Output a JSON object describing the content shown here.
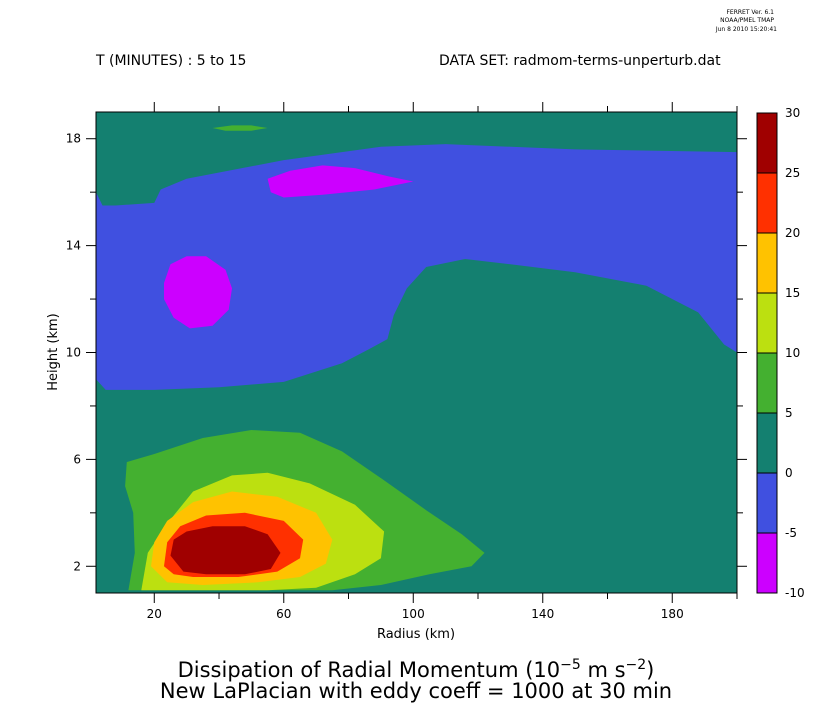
{
  "ferret": {
    "line1": "FERRET Ver. 6.1",
    "line2": "NOAA/PMEL TMAP",
    "line3": "Jun  8 2010 15:20:41"
  },
  "header": {
    "time_range": "T (MINUTES) : 5 to 15",
    "dataset": "DATA SET: radmom-terms-unperturb.dat"
  },
  "title": {
    "line1_prefix": "Dissipation of Radial Momentum (10",
    "line1_exp1": "−5",
    "line1_mid": " m s",
    "line1_exp2": "−2",
    "line1_suffix": ")",
    "line2": "New LaPlacian with eddy coeff = 1000 at 30 min"
  },
  "chart_data": {
    "type": "heatmap",
    "subtype": "filled-contour",
    "xlabel": "Radius (km)",
    "ylabel": "Height (km)",
    "xlim": [
      2,
      200
    ],
    "ylim": [
      1,
      19
    ],
    "x_ticks": [
      20,
      40,
      60,
      80,
      100,
      120,
      140,
      160,
      180,
      200
    ],
    "x_tick_labels": [
      "20",
      "60",
      "100",
      "140",
      "180"
    ],
    "x_labeled_ticks": [
      20,
      60,
      100,
      140,
      180
    ],
    "y_ticks": [
      2,
      4,
      6,
      8,
      10,
      12,
      14,
      16,
      18
    ],
    "y_tick_labels": [
      "2",
      "6",
      "10",
      "14",
      "18"
    ],
    "y_labeled_ticks": [
      2,
      6,
      10,
      14,
      18
    ],
    "colorbar": {
      "levels": [
        -10,
        -5,
        0,
        5,
        10,
        15,
        20,
        25,
        30
      ],
      "level_labels": [
        "-10",
        "-5",
        "0",
        "5",
        "10",
        "15",
        "20",
        "25",
        "30"
      ],
      "colors": [
        "#cc00ff",
        "#4050e0",
        "#148070",
        "#44b030",
        "#bce010",
        "#ffc200",
        "#ff3000",
        "#a00000"
      ]
    },
    "regions": [
      {
        "range": [
          -5,
          0
        ],
        "color": "#4050e0",
        "polygon": [
          [
            2,
            16
          ],
          [
            4,
            15.5
          ],
          [
            8,
            15.5
          ],
          [
            20,
            15.6
          ],
          [
            22,
            16.1
          ],
          [
            30,
            16.5
          ],
          [
            60,
            17.2
          ],
          [
            90,
            17.7
          ],
          [
            110,
            17.8
          ],
          [
            150,
            17.6
          ],
          [
            200,
            17.5
          ],
          [
            200,
            10
          ],
          [
            196,
            10.3
          ],
          [
            188,
            11.5
          ],
          [
            172,
            12.5
          ],
          [
            150,
            13
          ],
          [
            130,
            13.3
          ],
          [
            116,
            13.5
          ],
          [
            104,
            13.2
          ],
          [
            98,
            12.4
          ],
          [
            94,
            11.4
          ],
          [
            92,
            10.5
          ],
          [
            86,
            10.1
          ],
          [
            78,
            9.6
          ],
          [
            60,
            8.9
          ],
          [
            40,
            8.7
          ],
          [
            20,
            8.6
          ],
          [
            5,
            8.6
          ],
          [
            2,
            9
          ]
        ]
      },
      {
        "range": [
          -10,
          -5
        ],
        "color": "#cc00ff",
        "polygon": [
          [
            23,
            12.6
          ],
          [
            25,
            13.3
          ],
          [
            30,
            13.6
          ],
          [
            36,
            13.6
          ],
          [
            42,
            13.1
          ],
          [
            44,
            12.4
          ],
          [
            43,
            11.6
          ],
          [
            38,
            11
          ],
          [
            31,
            10.9
          ],
          [
            26,
            11.3
          ],
          [
            23,
            12
          ]
        ]
      },
      {
        "range": [
          -10,
          -5
        ],
        "color": "#cc00ff",
        "polygon": [
          [
            55,
            16.5
          ],
          [
            62,
            16.8
          ],
          [
            72,
            17
          ],
          [
            82,
            16.9
          ],
          [
            92,
            16.6
          ],
          [
            100,
            16.4
          ],
          [
            88,
            16.1
          ],
          [
            72,
            15.9
          ],
          [
            60,
            15.8
          ],
          [
            56,
            16
          ]
        ]
      },
      {
        "range": [
          5,
          10
        ],
        "color": "#44b030",
        "polygon": [
          [
            38,
            18.4
          ],
          [
            44,
            18.5
          ],
          [
            50,
            18.5
          ],
          [
            55,
            18.4
          ],
          [
            50,
            18.3
          ],
          [
            42,
            18.3
          ]
        ]
      },
      {
        "range": [
          5,
          10
        ],
        "color": "#44b030",
        "polygon": [
          [
            12,
            1.1
          ],
          [
            14,
            2.5
          ],
          [
            13.5,
            4
          ],
          [
            11,
            5
          ],
          [
            11.5,
            5.9
          ],
          [
            20,
            6.2
          ],
          [
            35,
            6.8
          ],
          [
            50,
            7.1
          ],
          [
            65,
            7
          ],
          [
            78,
            6.3
          ],
          [
            90,
            5.3
          ],
          [
            104,
            4.1
          ],
          [
            115,
            3.2
          ],
          [
            122,
            2.5
          ],
          [
            118,
            2
          ],
          [
            105,
            1.7
          ],
          [
            90,
            1.3
          ],
          [
            75,
            1.1
          ]
        ]
      },
      {
        "range": [
          10,
          15
        ],
        "color": "#bce010",
        "polygon": [
          [
            16,
            1.1
          ],
          [
            18,
            2.5
          ],
          [
            24,
            3.6
          ],
          [
            32,
            4.8
          ],
          [
            44,
            5.4
          ],
          [
            55,
            5.5
          ],
          [
            68,
            5.1
          ],
          [
            82,
            4.3
          ],
          [
            91,
            3.3
          ],
          [
            90,
            2.3
          ],
          [
            82,
            1.7
          ],
          [
            70,
            1.2
          ],
          [
            55,
            1.1
          ]
        ]
      },
      {
        "range": [
          15,
          20
        ],
        "color": "#ffc200",
        "polygon": [
          [
            19,
            2
          ],
          [
            20,
            2.9
          ],
          [
            24,
            3.7
          ],
          [
            32,
            4.4
          ],
          [
            44,
            4.8
          ],
          [
            58,
            4.6
          ],
          [
            70,
            4
          ],
          [
            75,
            3
          ],
          [
            73,
            2.1
          ],
          [
            65,
            1.6
          ],
          [
            52,
            1.4
          ],
          [
            35,
            1.3
          ],
          [
            24,
            1.4
          ]
        ]
      },
      {
        "range": [
          20,
          25
        ],
        "color": "#ff3000",
        "polygon": [
          [
            23,
            2
          ],
          [
            24,
            2.9
          ],
          [
            28,
            3.5
          ],
          [
            36,
            3.9
          ],
          [
            48,
            4
          ],
          [
            60,
            3.7
          ],
          [
            66,
            3
          ],
          [
            65,
            2.3
          ],
          [
            58,
            1.8
          ],
          [
            46,
            1.6
          ],
          [
            32,
            1.6
          ],
          [
            26,
            1.7
          ]
        ]
      },
      {
        "range": [
          25,
          30
        ],
        "color": "#a00000",
        "polygon": [
          [
            25,
            2.4
          ],
          [
            26,
            3
          ],
          [
            30,
            3.3
          ],
          [
            38,
            3.5
          ],
          [
            48,
            3.5
          ],
          [
            55,
            3.2
          ],
          [
            59,
            2.5
          ],
          [
            56,
            1.9
          ],
          [
            48,
            1.7
          ],
          [
            36,
            1.7
          ],
          [
            29,
            1.8
          ]
        ]
      }
    ]
  }
}
